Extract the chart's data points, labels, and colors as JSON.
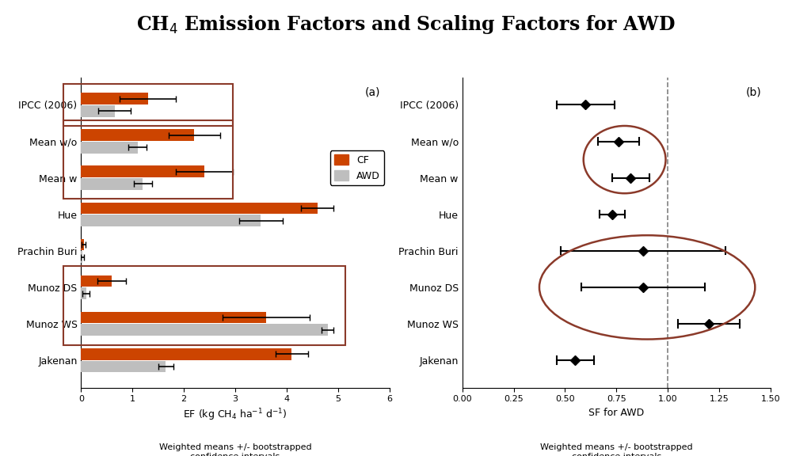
{
  "categories": [
    "IPCC (2006)",
    "Mean w/o",
    "Mean w",
    "Hue",
    "Prachin Buri",
    "Munoz DS",
    "Munoz WS",
    "Jakenan"
  ],
  "cf_values": [
    1.3,
    2.2,
    2.4,
    4.6,
    0.05,
    0.6,
    3.6,
    4.1
  ],
  "awd_values": [
    0.65,
    1.1,
    1.2,
    3.5,
    0.03,
    0.1,
    4.8,
    1.65
  ],
  "cf_err": [
    0.55,
    0.5,
    0.55,
    0.32,
    0.04,
    0.28,
    0.85,
    0.32
  ],
  "awd_err": [
    0.32,
    0.18,
    0.18,
    0.42,
    0.03,
    0.07,
    0.12,
    0.15
  ],
  "sf_values": [
    0.6,
    0.76,
    0.82,
    0.73,
    0.88,
    0.88,
    1.2,
    0.55
  ],
  "sf_lo": [
    0.46,
    0.66,
    0.73,
    0.67,
    0.48,
    0.58,
    1.05,
    0.46
  ],
  "sf_hi": [
    0.74,
    0.86,
    0.91,
    0.79,
    1.28,
    1.18,
    1.35,
    0.64
  ],
  "cf_color": "#CC4400",
  "awd_color": "#BEBEBE",
  "box_color": "#8B3A2A",
  "xlabel_a": "EF (kg CH$_4$ ha$^{-1}$ d$^{-1}$)",
  "xlabel_b": "SF for AWD",
  "footnote": "Weighted means +/- bootstrapped\nconfidence intervals",
  "label_a": "(a)",
  "label_b": "(b)"
}
